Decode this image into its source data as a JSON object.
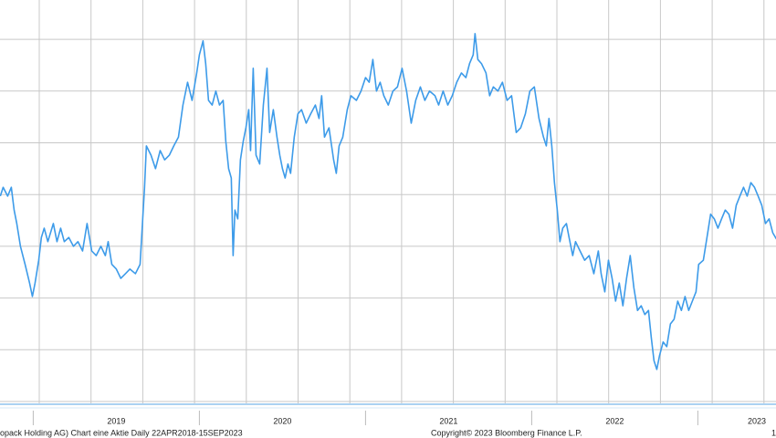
{
  "chart_data": {
    "type": "line",
    "color": "#3d9be9",
    "grid": true,
    "xlim": [
      2018.8,
      2023.71
    ],
    "ylim": [
      0,
      7.76
    ],
    "yticks": [
      0,
      1,
      2,
      3,
      4,
      5,
      6,
      7
    ],
    "xticks": [
      {
        "value": 2019,
        "label": "2019"
      },
      {
        "value": 2020,
        "label": "2020"
      },
      {
        "value": 2021,
        "label": "2021"
      },
      {
        "value": 2022,
        "label": "2022"
      },
      {
        "value": 2023,
        "label": "2023"
      }
    ],
    "footer": [
      "opack Holding AG) Chart eine Aktie  Daily 22APR2018-15SEP2023",
      "Copyright© 2023 Bloomberg Finance L.P.",
      "1"
    ],
    "x": [
      2018.802,
      2018.819,
      2018.846,
      2018.868,
      2018.885,
      2018.901,
      2018.923,
      2018.951,
      2018.978,
      2018.995,
      2019.011,
      2019.033,
      2019.049,
      2019.066,
      2019.088,
      2019.121,
      2019.143,
      2019.165,
      2019.187,
      2019.214,
      2019.242,
      2019.269,
      2019.297,
      2019.324,
      2019.352,
      2019.379,
      2019.407,
      2019.434,
      2019.451,
      2019.473,
      2019.5,
      2019.527,
      2019.555,
      2019.582,
      2019.615,
      2019.643,
      2019.659,
      2019.67,
      2019.681,
      2019.709,
      2019.736,
      2019.764,
      2019.791,
      2019.819,
      2019.846,
      2019.874,
      2019.901,
      2019.929,
      2019.956,
      2019.984,
      2020.0,
      2020.022,
      2020.038,
      2020.055,
      2020.077,
      2020.099,
      2020.121,
      2020.143,
      2020.159,
      2020.176,
      2020.192,
      2020.203,
      2020.214,
      2020.231,
      2020.247,
      2020.264,
      2020.28,
      2020.297,
      2020.308,
      2020.324,
      2020.341,
      2020.363,
      2020.385,
      2020.407,
      2020.423,
      2020.445,
      2020.467,
      2020.484,
      2020.5,
      2020.516,
      2020.533,
      2020.549,
      2020.571,
      2020.593,
      2020.615,
      2020.643,
      2020.67,
      2020.698,
      2020.72,
      2020.736,
      2020.753,
      2020.78,
      2020.808,
      2020.824,
      2020.841,
      2020.863,
      2020.89,
      2020.912,
      2020.945,
      2020.973,
      2021.0,
      2021.022,
      2021.044,
      2021.066,
      2021.088,
      2021.11,
      2021.137,
      2021.165,
      2021.192,
      2021.22,
      2021.247,
      2021.275,
      2021.302,
      2021.33,
      2021.357,
      2021.385,
      2021.418,
      2021.44,
      2021.467,
      2021.495,
      2021.522,
      2021.549,
      2021.577,
      2021.604,
      2021.626,
      2021.648,
      2021.659,
      2021.676,
      2021.698,
      2021.725,
      2021.747,
      2021.769,
      2021.797,
      2021.824,
      2021.852,
      2021.879,
      2021.907,
      2021.934,
      2021.962,
      2021.989,
      2022.016,
      2022.044,
      2022.071,
      2022.088,
      2022.104,
      2022.121,
      2022.137,
      2022.154,
      2022.17,
      2022.187,
      2022.209,
      2022.225,
      2022.247,
      2022.264,
      2022.291,
      2022.319,
      2022.346,
      2022.374,
      2022.401,
      2022.418,
      2022.44,
      2022.462,
      2022.484,
      2022.505,
      2022.527,
      2022.549,
      2022.571,
      2022.593,
      2022.615,
      2022.637,
      2022.659,
      2022.681,
      2022.703,
      2022.72,
      2022.736,
      2022.753,
      2022.769,
      2022.791,
      2022.813,
      2022.835,
      2022.857,
      2022.879,
      2022.901,
      2022.923,
      2022.945,
      2022.967,
      2022.989,
      2023.005,
      2023.033,
      2023.055,
      2023.077,
      2023.099,
      2023.121,
      2023.143,
      2023.165,
      2023.187,
      2023.209,
      2023.231,
      2023.253,
      2023.275,
      2023.297,
      2023.319,
      2023.341,
      2023.363,
      2023.385,
      2023.407,
      2023.429,
      2023.451,
      2023.473
    ],
    "values": [
      3.97,
      4.14,
      3.97,
      4.14,
      3.7,
      3.44,
      3.0,
      2.65,
      2.29,
      2.03,
      2.29,
      2.73,
      3.17,
      3.35,
      3.09,
      3.44,
      3.09,
      3.35,
      3.09,
      3.17,
      3.0,
      3.09,
      2.91,
      3.44,
      2.91,
      2.82,
      3.0,
      2.82,
      3.09,
      2.65,
      2.56,
      2.38,
      2.47,
      2.56,
      2.47,
      2.65,
      3.53,
      4.14,
      4.94,
      4.76,
      4.5,
      4.85,
      4.67,
      4.76,
      4.94,
      5.11,
      5.73,
      6.17,
      5.82,
      6.35,
      6.7,
      6.97,
      6.53,
      5.82,
      5.73,
      6.0,
      5.73,
      5.82,
      5.03,
      4.5,
      4.32,
      2.82,
      3.7,
      3.53,
      4.67,
      5.03,
      5.29,
      5.64,
      4.85,
      6.44,
      4.76,
      4.59,
      5.73,
      6.44,
      5.2,
      5.64,
      5.11,
      4.76,
      4.5,
      4.32,
      4.59,
      4.41,
      5.11,
      5.56,
      5.64,
      5.38,
      5.56,
      5.73,
      5.47,
      5.91,
      5.11,
      5.29,
      4.67,
      4.41,
      4.94,
      5.11,
      5.64,
      5.91,
      5.82,
      6.0,
      6.26,
      6.17,
      6.61,
      6.0,
      6.17,
      5.91,
      5.73,
      6.0,
      6.08,
      6.44,
      6.0,
      5.38,
      5.82,
      6.08,
      5.82,
      6.0,
      5.91,
      5.73,
      6.0,
      5.73,
      5.91,
      6.17,
      6.35,
      6.26,
      6.53,
      6.7,
      7.11,
      6.61,
      6.53,
      6.35,
      5.91,
      6.08,
      6.0,
      6.17,
      5.82,
      5.91,
      5.2,
      5.29,
      5.56,
      6.0,
      6.08,
      5.47,
      5.11,
      4.94,
      5.47,
      4.94,
      4.23,
      3.7,
      3.09,
      3.35,
      3.44,
      3.17,
      2.82,
      3.09,
      2.91,
      2.73,
      2.82,
      2.47,
      2.91,
      2.47,
      2.12,
      2.73,
      2.38,
      1.94,
      2.29,
      1.85,
      2.38,
      2.82,
      2.2,
      1.76,
      1.85,
      1.68,
      1.76,
      1.23,
      0.79,
      0.62,
      0.88,
      1.15,
      1.06,
      1.5,
      1.59,
      1.94,
      1.76,
      2.03,
      1.76,
      1.94,
      2.12,
      2.65,
      2.73,
      3.17,
      3.62,
      3.53,
      3.35,
      3.53,
      3.7,
      3.62,
      3.35,
      3.79,
      3.97,
      4.14,
      3.97,
      4.23,
      4.14,
      3.97,
      3.79,
      3.44,
      3.53,
      3.26,
      3.14
    ]
  }
}
